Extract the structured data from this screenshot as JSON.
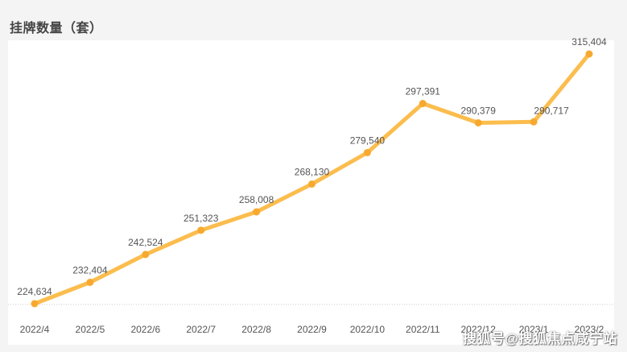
{
  "header": {
    "title": "挂牌数量（套）"
  },
  "watermark": {
    "text": "搜狐号@搜狐焦点咸宁站"
  },
  "chart_data": {
    "type": "line",
    "title": "挂牌数量（套）",
    "xlabel": "",
    "ylabel": "",
    "categories": [
      "2022/4",
      "2022/5",
      "2022/6",
      "2022/7",
      "2022/8",
      "2022/9",
      "2022/10",
      "2022/11",
      "2022/12",
      "2023/1",
      "2023/2"
    ],
    "series": [
      {
        "values": [
          224634,
          232404,
          242524,
          251323,
          258008,
          268130,
          279540,
          297391,
          290379,
          290717,
          315404
        ],
        "labels": [
          "224,634",
          "232,404",
          "242,524",
          "251,323",
          "258,008",
          "268,130",
          "279,540",
          "297,391",
          "290,379",
          "290,717",
          "315,404"
        ],
        "color": "#fbbd4e"
      }
    ],
    "ylim": [
      224634,
      315404
    ],
    "grid": false,
    "legend": "none"
  }
}
